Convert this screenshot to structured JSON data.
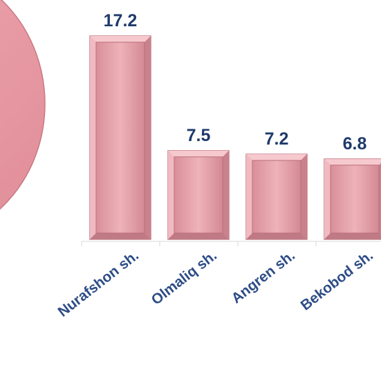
{
  "chart_data": {
    "type": "bar",
    "categories": [
      "Nurafshon sh.",
      "Olmaliq sh.",
      "Angren sh.",
      "Bekobod sh."
    ],
    "values": [
      17.2,
      7.5,
      7.2,
      6.8
    ],
    "data_labels": [
      "17.2",
      "7.5",
      "7.2",
      "6.8"
    ],
    "ylim": [
      0,
      17.2
    ],
    "grid": false,
    "bar_color": "#e8a4ac",
    "bar_edge_color": "#c47e88",
    "label_color": "#1f3a6b",
    "category_color": "#2e4d87",
    "axis_color": "#d9d9d9",
    "decoration_color": "#e79aa4"
  }
}
